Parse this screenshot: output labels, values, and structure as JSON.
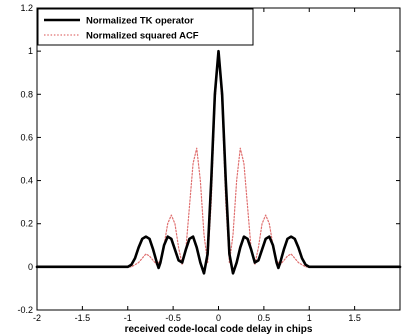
{
  "chart_data": {
    "type": "line",
    "title": "",
    "xlabel": "received code-local code delay in chips",
    "ylabel": "",
    "xlim": [
      -2,
      2
    ],
    "ylim": [
      -0.2,
      1.2
    ],
    "grid": false,
    "legend_placement": "top-left",
    "x_ticks": [
      -2,
      -1.5,
      -1,
      -0.5,
      0,
      0.5,
      1,
      1.5
    ],
    "x_tick_labels": [
      "-2",
      "-1.5",
      "-1",
      "-0.5",
      "0",
      "0.5",
      "1",
      "1.5"
    ],
    "y_ticks": [
      -0.2,
      0,
      0.2,
      0.4,
      0.6,
      0.8,
      1,
      1.2
    ],
    "y_tick_labels": [
      "-0.2",
      "0",
      "0.2",
      "0.4",
      "0.6",
      "0.8",
      "1",
      "1.2"
    ],
    "series": [
      {
        "name": "Normalized TK operator",
        "color": "#000000",
        "style": "solid",
        "x": [
          -2,
          -1.0,
          -0.96,
          -0.92,
          -0.88,
          -0.84,
          -0.8,
          -0.76,
          -0.72,
          -0.68,
          -0.66,
          -0.64,
          -0.6,
          -0.56,
          -0.52,
          -0.48,
          -0.44,
          -0.4,
          -0.36,
          -0.32,
          -0.28,
          -0.24,
          -0.2,
          -0.16,
          -0.12,
          -0.08,
          -0.04,
          0,
          0.04,
          0.08,
          0.12,
          0.16,
          0.2,
          0.24,
          0.28,
          0.32,
          0.36,
          0.4,
          0.44,
          0.48,
          0.52,
          0.56,
          0.6,
          0.64,
          0.66,
          0.68,
          0.72,
          0.76,
          0.8,
          0.84,
          0.88,
          0.92,
          0.96,
          1.0,
          2
        ],
        "y": [
          0,
          0,
          0.01,
          0.04,
          0.09,
          0.13,
          0.14,
          0.13,
          0.08,
          0.02,
          -0.005,
          0.02,
          0.1,
          0.14,
          0.13,
          0.08,
          0.03,
          0.02,
          0.08,
          0.13,
          0.14,
          0.09,
          0.02,
          -0.03,
          0.06,
          0.4,
          0.8,
          1.0,
          0.8,
          0.4,
          0.06,
          -0.03,
          0.02,
          0.09,
          0.14,
          0.13,
          0.08,
          0.02,
          0.03,
          0.08,
          0.13,
          0.14,
          0.1,
          0.02,
          -0.005,
          0.02,
          0.08,
          0.13,
          0.14,
          0.13,
          0.09,
          0.04,
          0.01,
          0,
          0
        ]
      },
      {
        "name": "Normalized squared ACF",
        "color": "#e07070",
        "style": "dotted",
        "x": [
          -2,
          -1.0,
          -0.96,
          -0.92,
          -0.88,
          -0.84,
          -0.8,
          -0.76,
          -0.72,
          -0.68,
          -0.64,
          -0.6,
          -0.56,
          -0.52,
          -0.48,
          -0.44,
          -0.4,
          -0.36,
          -0.32,
          -0.28,
          -0.24,
          -0.2,
          -0.16,
          -0.12,
          -0.08,
          -0.04,
          0,
          0.04,
          0.08,
          0.12,
          0.16,
          0.2,
          0.24,
          0.28,
          0.32,
          0.36,
          0.4,
          0.44,
          0.48,
          0.52,
          0.56,
          0.6,
          0.64,
          0.68,
          0.72,
          0.76,
          0.8,
          0.84,
          0.88,
          0.92,
          0.96,
          1.0,
          2
        ],
        "y": [
          0,
          0,
          0.0,
          0.01,
          0.02,
          0.04,
          0.06,
          0.05,
          0.03,
          0.01,
          0.03,
          0.1,
          0.2,
          0.24,
          0.2,
          0.09,
          0.01,
          0.08,
          0.28,
          0.48,
          0.55,
          0.4,
          0.15,
          0.02,
          0.3,
          0.75,
          1.0,
          0.75,
          0.3,
          0.02,
          0.15,
          0.4,
          0.55,
          0.48,
          0.28,
          0.08,
          0.01,
          0.09,
          0.2,
          0.24,
          0.2,
          0.1,
          0.03,
          0.01,
          0.03,
          0.05,
          0.06,
          0.04,
          0.02,
          0.01,
          0.0,
          0,
          0
        ]
      }
    ]
  }
}
